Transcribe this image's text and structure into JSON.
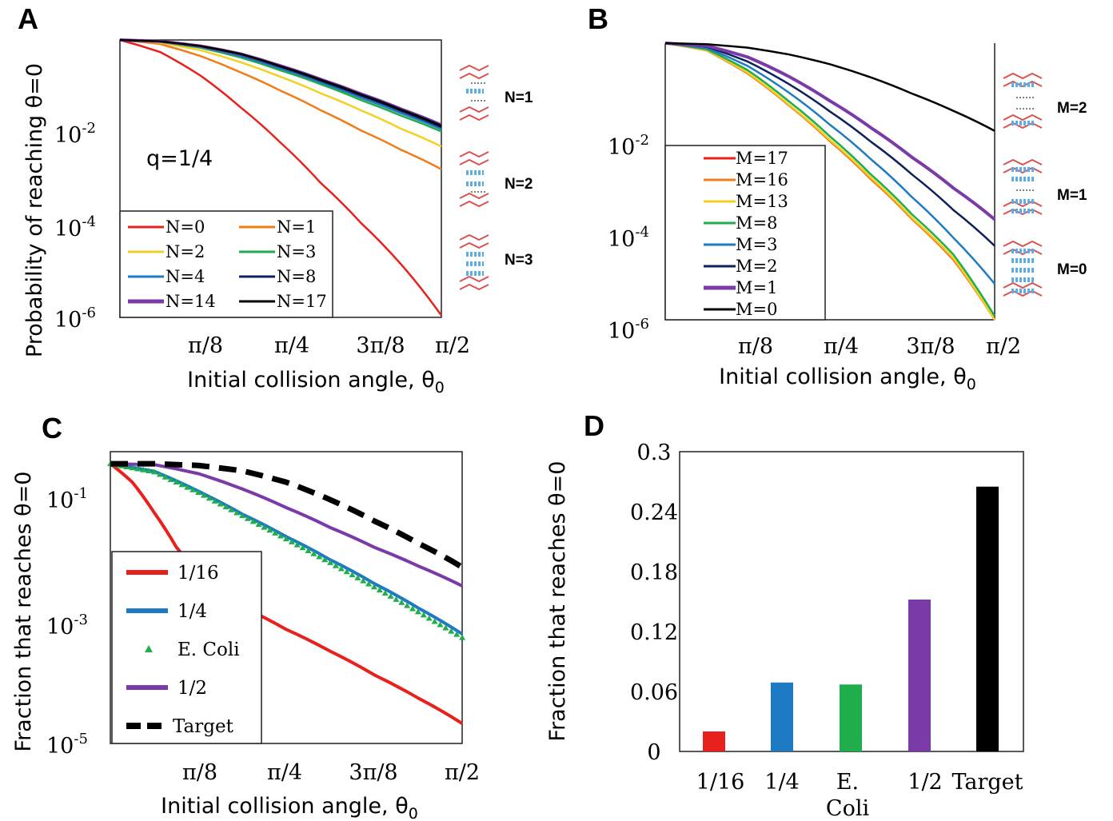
{
  "panels": {
    "A": {
      "label": "A",
      "annotation": "q=1/4",
      "side_labels": [
        "N=1",
        "N=2",
        "N=3"
      ]
    },
    "B": {
      "label": "B",
      "side_labels": [
        "M=2",
        "M=1",
        "M=0"
      ]
    },
    "C": {
      "label": "C"
    },
    "D": {
      "label": "D"
    }
  },
  "chart_data": [
    {
      "id": "A",
      "type": "line",
      "xlabel": "Initial collision angle, θ0",
      "ylabel": "Probability of reaching θ=0",
      "xticks": [
        "π/8",
        "π/4",
        "3π/8",
        "π/2"
      ],
      "yticks": [
        {
          "base": "10",
          "exp": "-2"
        },
        {
          "base": "10",
          "exp": "-4"
        },
        {
          "base": "10",
          "exp": "-6"
        }
      ],
      "xlim": [
        0,
        1.5708
      ],
      "ylim_log10": [
        -6,
        0
      ],
      "yscale": "log",
      "legend_position": "lower-left",
      "series": [
        {
          "name": "N=0",
          "color": "#e8211c",
          "x": [
            0,
            0.196,
            0.393,
            0.589,
            0.785,
            0.982,
            1.178,
            1.374,
            1.571
          ],
          "y": [
            1.0,
            0.55,
            0.17,
            0.035,
            0.006,
            0.0008,
            0.00011,
            1.4e-05,
            1.1e-06
          ]
        },
        {
          "name": "N=1",
          "color": "#f07d1a",
          "x": [
            0,
            0.196,
            0.393,
            0.589,
            0.785,
            0.982,
            1.178,
            1.374,
            1.571
          ],
          "y": [
            1.0,
            0.82,
            0.45,
            0.2,
            0.08,
            0.03,
            0.011,
            0.0042,
            0.0016
          ]
        },
        {
          "name": "N=2",
          "color": "#f2d024",
          "x": [
            0,
            0.196,
            0.393,
            0.589,
            0.785,
            0.982,
            1.178,
            1.374,
            1.571
          ],
          "y": [
            1.0,
            0.88,
            0.6,
            0.33,
            0.16,
            0.07,
            0.03,
            0.012,
            0.005
          ]
        },
        {
          "name": "N=3",
          "color": "#1fae4b",
          "x": [
            0,
            0.196,
            0.393,
            0.589,
            0.785,
            0.982,
            1.178,
            1.374,
            1.571
          ],
          "y": [
            1.0,
            0.91,
            0.68,
            0.42,
            0.22,
            0.11,
            0.05,
            0.023,
            0.0105
          ]
        },
        {
          "name": "N=4",
          "color": "#1f7ac4",
          "x": [
            0,
            0.196,
            0.393,
            0.589,
            0.785,
            0.982,
            1.178,
            1.374,
            1.571
          ],
          "y": [
            1.0,
            0.92,
            0.71,
            0.45,
            0.24,
            0.12,
            0.056,
            0.026,
            0.0118
          ]
        },
        {
          "name": "N=8",
          "color": "#10205c",
          "x": [
            0,
            0.196,
            0.393,
            0.589,
            0.785,
            0.982,
            1.178,
            1.374,
            1.571
          ],
          "y": [
            1.0,
            0.93,
            0.73,
            0.48,
            0.26,
            0.13,
            0.062,
            0.029,
            0.013
          ]
        },
        {
          "name": "N=14",
          "color": "#7a3ba8",
          "x": [
            0,
            0.196,
            0.393,
            0.589,
            0.785,
            0.982,
            1.178,
            1.374,
            1.571
          ],
          "y": [
            1.0,
            0.935,
            0.74,
            0.5,
            0.275,
            0.14,
            0.068,
            0.032,
            0.0145
          ]
        },
        {
          "name": "N=17",
          "color": "#000000",
          "x": [
            0,
            0.196,
            0.393,
            0.589,
            0.785,
            0.982,
            1.178,
            1.374,
            1.571
          ],
          "y": [
            1.0,
            0.935,
            0.74,
            0.5,
            0.27,
            0.137,
            0.066,
            0.031,
            0.014
          ]
        }
      ]
    },
    {
      "id": "B",
      "type": "line",
      "xlabel": "Initial collision angle, θ0",
      "ylabel": "",
      "xticks": [
        "π/8",
        "π/4",
        "3π/8",
        "π/2"
      ],
      "yticks": [
        {
          "base": "10",
          "exp": "-2"
        },
        {
          "base": "10",
          "exp": "-4"
        },
        {
          "base": "10",
          "exp": "-6"
        }
      ],
      "xlim": [
        0,
        1.5708
      ],
      "ylim_log10": [
        -6,
        0
      ],
      "yscale": "log",
      "legend_position": "left",
      "series": [
        {
          "name": "M=17",
          "color": "#e8211c",
          "x": [
            0,
            0.196,
            0.393,
            0.589,
            0.785,
            0.982,
            1.178,
            1.374,
            1.571
          ],
          "y": [
            1.0,
            0.7,
            0.22,
            0.045,
            0.0075,
            0.0011,
            0.00015,
            2e-05,
            9e-07
          ]
        },
        {
          "name": "M=16",
          "color": "#f07d1a",
          "x": [
            0,
            0.196,
            0.393,
            0.589,
            0.785,
            0.982,
            1.178,
            1.374,
            1.571
          ],
          "y": [
            1.0,
            0.7,
            0.22,
            0.045,
            0.0075,
            0.0011,
            0.00015,
            2e-05,
            9e-07
          ]
        },
        {
          "name": "M=13",
          "color": "#f2d024",
          "x": [
            0,
            0.196,
            0.393,
            0.589,
            0.785,
            0.982,
            1.178,
            1.374,
            1.571
          ],
          "y": [
            1.0,
            0.71,
            0.23,
            0.047,
            0.008,
            0.0012,
            0.00016,
            2.2e-05,
            1e-06
          ]
        },
        {
          "name": "M=8",
          "color": "#1fae4b",
          "x": [
            0,
            0.196,
            0.393,
            0.589,
            0.785,
            0.982,
            1.178,
            1.374,
            1.571
          ],
          "y": [
            1.0,
            0.74,
            0.26,
            0.055,
            0.0095,
            0.0014,
            0.00019,
            2.6e-05,
            1.2e-06
          ]
        },
        {
          "name": "M=3",
          "color": "#1f7ac4",
          "x": [
            0,
            0.196,
            0.393,
            0.589,
            0.785,
            0.982,
            1.178,
            1.374,
            1.571
          ],
          "y": [
            1.0,
            0.79,
            0.32,
            0.085,
            0.017,
            0.003,
            0.00045,
            6e-05,
            6e-06
          ]
        },
        {
          "name": "M=2",
          "color": "#10205c",
          "x": [
            0,
            0.196,
            0.393,
            0.589,
            0.785,
            0.982,
            1.178,
            1.374,
            1.571
          ],
          "y": [
            1.0,
            0.84,
            0.4,
            0.13,
            0.033,
            0.0072,
            0.0014,
            0.00024,
            4e-05
          ]
        },
        {
          "name": "M=1",
          "color": "#7a3ba8",
          "x": [
            0,
            0.196,
            0.393,
            0.589,
            0.785,
            0.982,
            1.178,
            1.374,
            1.571
          ],
          "y": [
            1.0,
            0.88,
            0.5,
            0.19,
            0.056,
            0.0145,
            0.0033,
            0.00072,
            0.00015
          ]
        },
        {
          "name": "M=0",
          "color": "#000000",
          "x": [
            0,
            0.196,
            0.393,
            0.589,
            0.785,
            0.982,
            1.178,
            1.374,
            1.571
          ],
          "y": [
            1.0,
            0.95,
            0.8,
            0.57,
            0.35,
            0.18,
            0.08,
            0.034,
            0.0125
          ]
        }
      ]
    },
    {
      "id": "C",
      "type": "line",
      "xlabel": "Initial collision angle, θ0",
      "ylabel": "Fraction that reaches θ=0",
      "xticks": [
        "π/8",
        "π/4",
        "3π/8",
        "π/2"
      ],
      "yticks": [
        {
          "base": "10",
          "exp": "-1"
        },
        {
          "base": "10",
          "exp": "-3"
        },
        {
          "base": "10",
          "exp": "-5"
        }
      ],
      "xlim": [
        0,
        1.5708
      ],
      "ylim_log10": [
        -5,
        0
      ],
      "yscale": "log",
      "legend_position": "left",
      "series": [
        {
          "name": "1/16",
          "color": "#e8211c",
          "style": "solid",
          "x": [
            0,
            0.098,
            0.196,
            0.295,
            0.393,
            0.589,
            0.785,
            0.982,
            1.178,
            1.374,
            1.571
          ],
          "y": [
            0.62,
            0.3,
            0.09,
            0.023,
            0.0075,
            0.0022,
            0.0009,
            0.00038,
            0.00015,
            6e-05,
            2.2e-05
          ]
        },
        {
          "name": "1/4",
          "color": "#1f7ac4",
          "style": "solid",
          "x": [
            0,
            0.196,
            0.393,
            0.589,
            0.785,
            0.982,
            1.178,
            1.374,
            1.571
          ],
          "y": [
            0.62,
            0.46,
            0.21,
            0.085,
            0.035,
            0.014,
            0.0055,
            0.0021,
            0.00075
          ]
        },
        {
          "name": "E. Coli",
          "color": "#1fae4b",
          "style": "markers",
          "x": [
            0,
            0.196,
            0.393,
            0.589,
            0.785,
            0.982,
            1.178,
            1.374,
            1.571
          ],
          "y": [
            0.62,
            0.45,
            0.2,
            0.08,
            0.032,
            0.0125,
            0.0048,
            0.0018,
            0.00065
          ]
        },
        {
          "name": "1/2",
          "color": "#7a3ba8",
          "style": "solid",
          "x": [
            0,
            0.196,
            0.393,
            0.589,
            0.785,
            0.982,
            1.178,
            1.374,
            1.571
          ],
          "y": [
            0.62,
            0.6,
            0.42,
            0.23,
            0.11,
            0.05,
            0.023,
            0.011,
            0.005
          ]
        },
        {
          "name": "Target",
          "color": "#000000",
          "style": "dashed",
          "x": [
            0,
            0.196,
            0.393,
            0.589,
            0.785,
            0.982,
            1.178,
            1.374,
            1.571
          ],
          "y": [
            0.62,
            0.62,
            0.58,
            0.47,
            0.3,
            0.15,
            0.065,
            0.027,
            0.0105
          ]
        }
      ]
    },
    {
      "id": "D",
      "type": "bar",
      "ylabel": "Fraction that reaches θ=0",
      "categories": [
        "1/16",
        "1/4",
        "E. Coli",
        "1/2",
        "Target"
      ],
      "values": [
        0.02,
        0.069,
        0.067,
        0.152,
        0.265
      ],
      "colors": [
        "#e8211c",
        "#1f7ac4",
        "#1fae4b",
        "#7a3ba8",
        "#000000"
      ],
      "yticks": [
        "0.3",
        "0.24",
        "0.18",
        "0.12",
        "0.06",
        "0"
      ],
      "ylim": [
        0,
        0.3
      ]
    }
  ]
}
